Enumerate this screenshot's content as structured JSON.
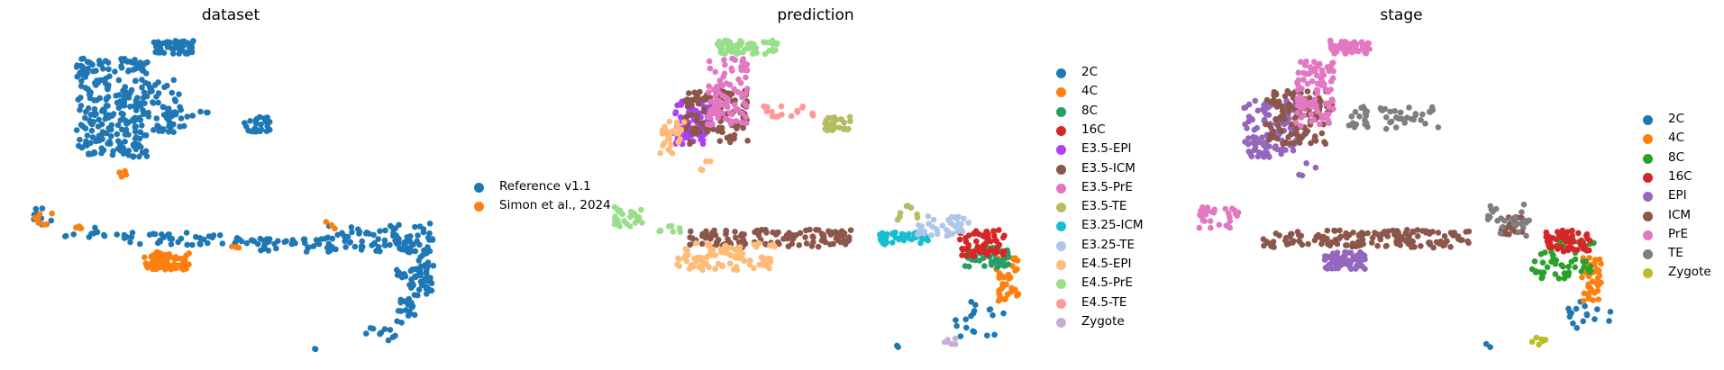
{
  "chart_data": [
    {
      "type": "scatter",
      "title": "dataset",
      "legend_position": "right",
      "axes_visible": false,
      "grid": false,
      "series": [
        {
          "name": "Reference v1.1",
          "color": "#1f77b4",
          "clusters": [
            {
              "x": [
                170,
                215
              ],
              "y": [
                45,
                60
              ],
              "n": 50
            },
            {
              "x": [
                85,
                165
              ],
              "y": [
                65,
                175
              ],
              "n": 260
            },
            {
              "x": [
                165,
                205
              ],
              "y": [
                88,
                150
              ],
              "n": 40
            },
            {
              "x": [
                180,
                232
              ],
              "y": [
                118,
                130
              ],
              "n": 16
            },
            {
              "x": [
                270,
                300
              ],
              "y": [
                128,
                148
              ],
              "n": 28
            },
            {
              "x": [
                26,
                58
              ],
              "y": [
                228,
                252
              ],
              "n": 10
            },
            {
              "x": [
                70,
                140
              ],
              "y": [
                252,
                265
              ],
              "n": 14
            },
            {
              "x": [
                140,
                285
              ],
              "y": [
                258,
                272
              ],
              "n": 45
            },
            {
              "x": [
                285,
                365
              ],
              "y": [
                265,
                280
              ],
              "n": 35
            },
            {
              "x": [
                360,
                480
              ],
              "y": [
                248,
                280
              ],
              "n": 80
            },
            {
              "x": [
                440,
                480
              ],
              "y": [
                262,
                335
              ],
              "n": 45
            },
            {
              "x": [
                455,
                482
              ],
              "y": [
                295,
                322
              ],
              "n": 30
            },
            {
              "x": [
                440,
                470
              ],
              "y": [
                335,
                360
              ],
              "n": 14
            },
            {
              "x": [
                400,
                440
              ],
              "y": [
                362,
                378
              ],
              "n": 10
            },
            {
              "x": [
                344,
                352
              ],
              "y": [
                384,
                388
              ],
              "n": 2
            }
          ]
        },
        {
          "name": "Simon et al., 2024",
          "color": "#ff7f0e",
          "clusters": [
            {
              "x": [
                160,
                210
              ],
              "y": [
                280,
                300
              ],
              "n": 60
            },
            {
              "x": [
                30,
                58
              ],
              "y": [
                236,
                250
              ],
              "n": 8
            },
            {
              "x": [
                130,
                145
              ],
              "y": [
                188,
                198
              ],
              "n": 4
            },
            {
              "x": [
                80,
                92
              ],
              "y": [
                250,
                256
              ],
              "n": 3
            },
            {
              "x": [
                255,
                270
              ],
              "y": [
                268,
                276
              ],
              "n": 3
            },
            {
              "x": [
                360,
                372
              ],
              "y": [
                246,
                254
              ],
              "n": 3
            }
          ]
        }
      ]
    },
    {
      "type": "scatter",
      "title": "prediction",
      "legend_position": "right",
      "axes_visible": false,
      "grid": false,
      "series": [
        {
          "name": "2C",
          "color": "#1f77b4",
          "clusters": [
            {
              "x": [
                1060,
                1115
              ],
              "y": [
                335,
                375
              ],
              "n": 18
            },
            {
              "x": [
                995,
                1005
              ],
              "y": [
                382,
                388
              ],
              "n": 2
            }
          ]
        },
        {
          "name": "4C",
          "color": "#ff7f0e",
          "clusters": [
            {
              "x": [
                1105,
                1130
              ],
              "y": [
                285,
                335
              ],
              "n": 40
            }
          ]
        },
        {
          "name": "8C",
          "color": "#279e68",
          "clusters": [
            {
              "x": [
                1070,
                1120
              ],
              "y": [
                275,
                298
              ],
              "n": 50
            }
          ]
        },
        {
          "name": "16C",
          "color": "#d62728",
          "clusters": [
            {
              "x": [
                1065,
                1115
              ],
              "y": [
                255,
                285
              ],
              "n": 60
            }
          ]
        },
        {
          "name": "E3.5-EPI",
          "color": "#aa40fc",
          "clusters": [
            {
              "x": [
                748,
                790
              ],
              "y": [
                112,
                160
              ],
              "n": 80
            }
          ]
        },
        {
          "name": "E3.5-ICM",
          "color": "#8c564b",
          "clusters": [
            {
              "x": [
                760,
                830
              ],
              "y": [
                100,
                160
              ],
              "n": 120
            },
            {
              "x": [
                765,
                945
              ],
              "y": [
                255,
                275
              ],
              "n": 120
            }
          ]
        },
        {
          "name": "E3.5-PrE",
          "color": "#e377c2",
          "clusters": [
            {
              "x": [
                785,
                830
              ],
              "y": [
                65,
                140
              ],
              "n": 90
            }
          ]
        },
        {
          "name": "E3.5-TE",
          "color": "#b5bd61",
          "clusters": [
            {
              "x": [
                915,
                945
              ],
              "y": [
                128,
                145
              ],
              "n": 30
            },
            {
              "x": [
                995,
                1020
              ],
              "y": [
                225,
                245
              ],
              "n": 8
            }
          ]
        },
        {
          "name": "E3.25-ICM",
          "color": "#17becf",
          "clusters": [
            {
              "x": [
                975,
                1030
              ],
              "y": [
                258,
                272
              ],
              "n": 45
            }
          ]
        },
        {
          "name": "E3.25-TE",
          "color": "#aec7e8",
          "clusters": [
            {
              "x": [
                1015,
                1080
              ],
              "y": [
                240,
                262
              ],
              "n": 40
            }
          ]
        },
        {
          "name": "E4.5-EPI",
          "color": "#ffbb78",
          "clusters": [
            {
              "x": [
                730,
                760
              ],
              "y": [
                135,
                175
              ],
              "n": 30
            },
            {
              "x": [
                750,
                860
              ],
              "y": [
                270,
                300
              ],
              "n": 90
            },
            {
              "x": [
                775,
                790
              ],
              "y": [
                178,
                198
              ],
              "n": 4
            }
          ]
        },
        {
          "name": "E4.5-PrE",
          "color": "#98df8a",
          "clusters": [
            {
              "x": [
                795,
                865
              ],
              "y": [
                45,
                60
              ],
              "n": 60
            },
            {
              "x": [
                680,
                715
              ],
              "y": [
                230,
                252
              ],
              "n": 25
            },
            {
              "x": [
                725,
                760
              ],
              "y": [
                250,
                258
              ],
              "n": 8
            }
          ]
        },
        {
          "name": "E4.5-TE",
          "color": "#ff9896",
          "clusters": [
            {
              "x": [
                845,
                905
              ],
              "y": [
                118,
                130
              ],
              "n": 18
            }
          ]
        },
        {
          "name": "Zygote",
          "color": "#c5b0d5",
          "clusters": [
            {
              "x": [
                1048,
                1065
              ],
              "y": [
                375,
                383
              ],
              "n": 6
            }
          ]
        }
      ]
    },
    {
      "type": "scatter",
      "title": "stage",
      "legend_position": "right",
      "axes_visible": false,
      "grid": false,
      "series": [
        {
          "name": "2C",
          "color": "#1f77b4",
          "clusters": [
            {
              "x": [
                1740,
                1790
              ],
              "y": [
                335,
                372
              ],
              "n": 16
            },
            {
              "x": [
                1645,
                1655
              ],
              "y": [
                382,
                388
              ],
              "n": 2
            }
          ]
        },
        {
          "name": "4C",
          "color": "#ff7f0e",
          "clusters": [
            {
              "x": [
                1755,
                1780
              ],
              "y": [
                285,
                335
              ],
              "n": 40
            }
          ]
        },
        {
          "name": "8C",
          "color": "#2ca02c",
          "clusters": [
            {
              "x": [
                1700,
                1770
              ],
              "y": [
                265,
                310
              ],
              "n": 55
            }
          ]
        },
        {
          "name": "16C",
          "color": "#d62728",
          "clusters": [
            {
              "x": [
                1715,
                1765
              ],
              "y": [
                255,
                280
              ],
              "n": 60
            }
          ]
        },
        {
          "name": "EPI",
          "color": "#9467bd",
          "clusters": [
            {
              "x": [
                1380,
                1440
              ],
              "y": [
                112,
                175
              ],
              "n": 110
            },
            {
              "x": [
                1470,
                1515
              ],
              "y": [
                280,
                300
              ],
              "n": 70
            },
            {
              "x": [
                1440,
                1460
              ],
              "y": [
                180,
                198
              ],
              "n": 4
            }
          ]
        },
        {
          "name": "ICM",
          "color": "#8c564b",
          "clusters": [
            {
              "x": [
                1405,
                1480
              ],
              "y": [
                100,
                160
              ],
              "n": 120
            },
            {
              "x": [
                1400,
                1630
              ],
              "y": [
                255,
                275
              ],
              "n": 150
            },
            {
              "x": [
                1660,
                1690
              ],
              "y": [
                240,
                262
              ],
              "n": 20
            }
          ]
        },
        {
          "name": "PrE",
          "color": "#e377c2",
          "clusters": [
            {
              "x": [
                1475,
                1520
              ],
              "y": [
                45,
                60
              ],
              "n": 50
            },
            {
              "x": [
                1435,
                1480
              ],
              "y": [
                65,
                140
              ],
              "n": 90
            },
            {
              "x": [
                1330,
                1375
              ],
              "y": [
                230,
                255
              ],
              "n": 30
            }
          ]
        },
        {
          "name": "TE",
          "color": "#7f7f7f",
          "clusters": [
            {
              "x": [
                1495,
                1600
              ],
              "y": [
                118,
                145
              ],
              "n": 50
            },
            {
              "x": [
                1650,
                1700
              ],
              "y": [
                225,
                262
              ],
              "n": 25
            }
          ]
        },
        {
          "name": "Zygote",
          "color": "#bcbd22",
          "clusters": [
            {
              "x": [
                1700,
                1720
              ],
              "y": [
                375,
                383
              ],
              "n": 6
            }
          ]
        }
      ]
    }
  ]
}
